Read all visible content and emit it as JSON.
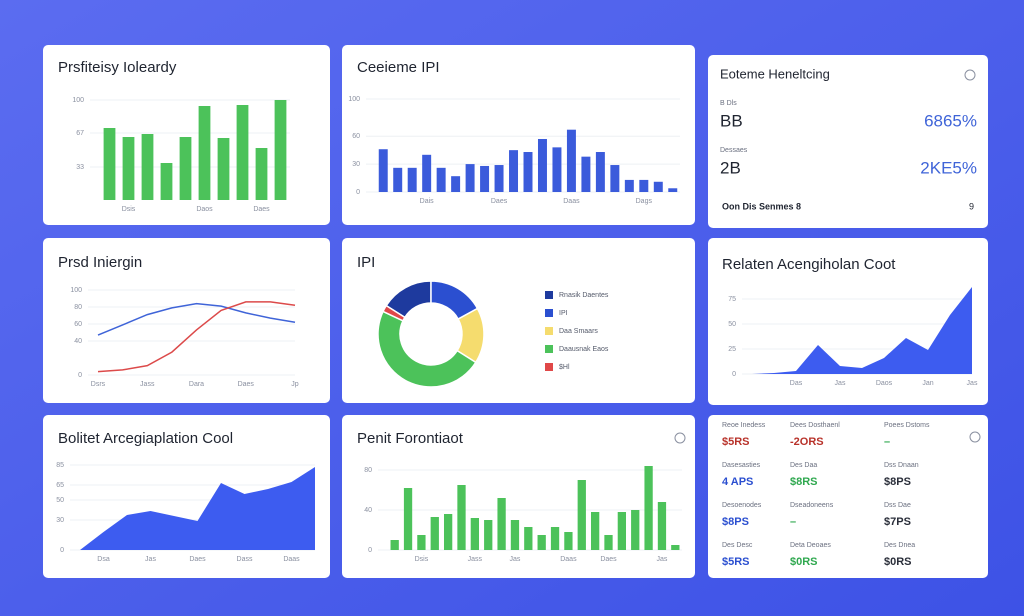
{
  "chart_data": [
    {
      "type": "bar",
      "title": "Prsfiteisy Ioleardy",
      "color": "#4cc25a",
      "categories": [
        null,
        "Dsis",
        null,
        null,
        null,
        "Daos",
        null,
        null,
        "Daes",
        null
      ],
      "values": [
        72,
        63,
        66,
        37,
        63,
        94,
        62,
        95,
        52,
        100
      ],
      "ylim": [
        0,
        100
      ],
      "yticks": [
        33,
        67,
        100
      ],
      "grid": true
    },
    {
      "type": "bar",
      "title": "Ceeieme IPI",
      "color": "#3b5bdb",
      "categories": [
        null,
        null,
        null,
        "Dais",
        null,
        null,
        null,
        null,
        "Daes",
        null,
        null,
        null,
        null,
        "Daas",
        null,
        null,
        null,
        null,
        "Dags",
        null,
        null
      ],
      "values": [
        46,
        26,
        26,
        40,
        26,
        17,
        30,
        28,
        29,
        45,
        43,
        57,
        48,
        67,
        38,
        43,
        29,
        13,
        13,
        11,
        4
      ],
      "ylim": [
        0,
        100
      ],
      "yticks": [
        0,
        30,
        60,
        100
      ],
      "grid": true
    },
    {
      "type": "line",
      "title": "Prsd Iniergin",
      "categories": [
        "Dsrs",
        null,
        "Jass",
        null,
        "Dara",
        null,
        "Daes",
        null,
        "Jp"
      ],
      "series": [
        {
          "name": "Dsrs",
          "color": "#3f64d8",
          "values": [
            47,
            59,
            71,
            79,
            84,
            81,
            73,
            67,
            62
          ]
        },
        {
          "name": "Dara",
          "color": "#dc4a4a",
          "values": [
            4,
            6,
            11,
            27,
            53,
            76,
            86,
            86,
            82
          ]
        }
      ],
      "ylim": [
        0,
        100
      ],
      "yticks": [
        0,
        40,
        60,
        80,
        100
      ],
      "grid": true
    },
    {
      "type": "pie",
      "title": "IPI",
      "categories": [
        "Rnasik Daentes",
        "IPI",
        "Daa Smaars",
        "Daausnak Eaos",
        "$Hl"
      ],
      "values": [
        16,
        17,
        17,
        48,
        2
      ],
      "colors": [
        "#1e3a9e",
        "#2b4fd0",
        "#f5dc6e",
        "#4cc25a",
        "#e04848"
      ]
    },
    {
      "type": "area",
      "title": "Relaten Acengiholan Coot",
      "color": "#3d5cf0",
      "categories": [
        null,
        null,
        "Das",
        null,
        "Jas",
        null,
        "Daos",
        null,
        "Jan",
        null,
        "Jas"
      ],
      "values": [
        0,
        1,
        3,
        29,
        8,
        6,
        16,
        36,
        24,
        59,
        87
      ],
      "ylim": [
        0,
        90
      ],
      "yticks": [
        0,
        25,
        50,
        75
      ],
      "grid": true
    },
    {
      "type": "area",
      "title": "Bolitet Arcegiaplation Cool",
      "color": "#3d5cf0",
      "categories": [
        null,
        "Dsa",
        null,
        "Jas",
        null,
        "Daes",
        null,
        "Dass",
        null,
        "Daas",
        null
      ],
      "values": [
        0,
        18,
        35,
        39,
        34,
        29,
        67,
        56,
        61,
        68,
        83
      ],
      "ylim": [
        0,
        90
      ],
      "yticks": [
        0,
        30,
        50,
        65,
        85
      ],
      "grid": true
    },
    {
      "type": "bar",
      "title": "Penit Forontiaot",
      "color": "#4cc25a",
      "categories": [
        null,
        null,
        "Dsis",
        null,
        null,
        null,
        "Jass",
        null,
        null,
        "Jas",
        null,
        null,
        null,
        "Daas",
        null,
        null,
        "Daes",
        null,
        null,
        null,
        "Jas",
        null
      ],
      "values": [
        10,
        62,
        15,
        33,
        36,
        65,
        32,
        30,
        52,
        30,
        23,
        15,
        23,
        18,
        70,
        38,
        15,
        38,
        40,
        84,
        48,
        5
      ],
      "ylim": [
        0,
        90
      ],
      "yticks": [
        0,
        40,
        80
      ],
      "grid": true
    }
  ],
  "kpi_summary": {
    "title": "Eoteme Heneltcing",
    "rows": [
      {
        "label": "B Dls",
        "value": "BB",
        "change": "6865%"
      },
      {
        "label": "Dessaes",
        "value": "2B",
        "change": "2KE5%"
      }
    ],
    "footer": "Oon Dis Senmes 8",
    "footer_value": "9"
  },
  "kpi_grid": {
    "items": [
      {
        "label": "Reoe Inedess",
        "value": "$5RS",
        "color": "#b8322a"
      },
      {
        "label": "Dees Dosthaenl",
        "value": "-2ORS",
        "color": "#b8322a"
      },
      {
        "label": "Poees Dstoms",
        "value": "–",
        "color": "#2fa84f"
      },
      {
        "label": "Dasesasties",
        "value": "4 APS",
        "color": "#2b4fd0"
      },
      {
        "label": "Des Daa",
        "value": "$8RS",
        "color": "#2fa84f"
      },
      {
        "label": "Dss Dnaan",
        "value": "$8PS",
        "color": "#2a2e3a"
      },
      {
        "label": "Desoenodes",
        "value": "$8PS",
        "color": "#2b4fd0"
      },
      {
        "label": "Dseadoneens",
        "value": "–",
        "color": "#2fa84f"
      },
      {
        "label": "Dss Dae",
        "value": "$7PS",
        "color": "#2a2e3a"
      },
      {
        "label": "Des Desc",
        "value": "$5RS",
        "color": "#2b4fd0"
      },
      {
        "label": "Deta Deoaes",
        "value": "$0RS",
        "color": "#2fa84f"
      },
      {
        "label": "Des Dnea",
        "value": "$0RS",
        "color": "#2a2e3a"
      }
    ]
  }
}
